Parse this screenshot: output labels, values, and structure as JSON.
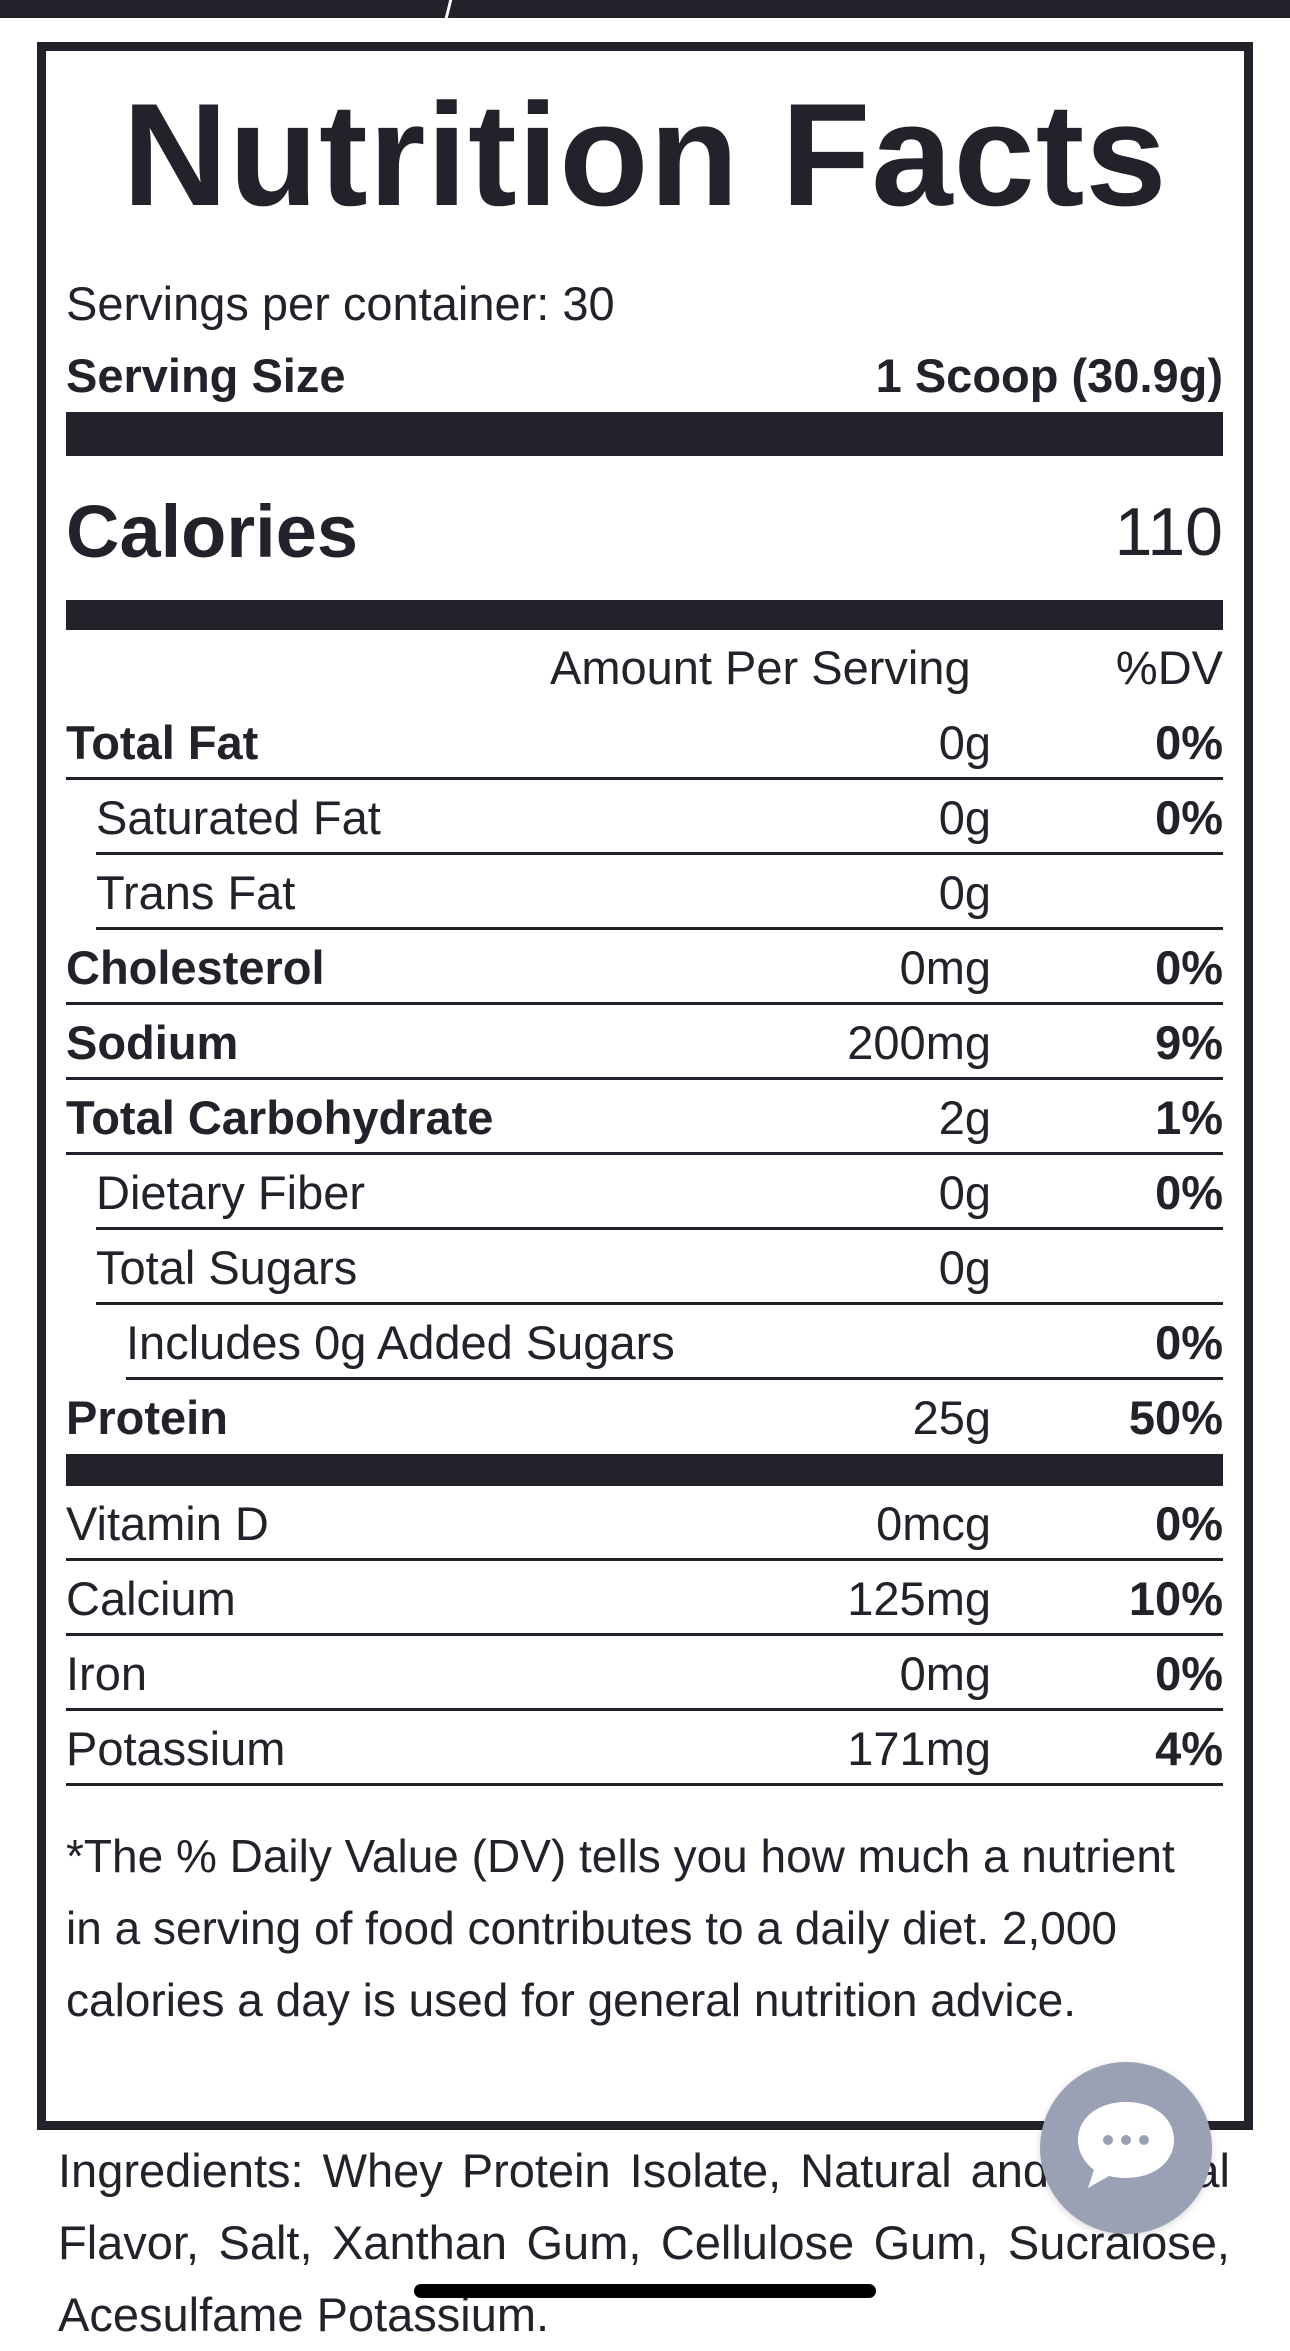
{
  "label": {
    "title": "Nutrition Facts",
    "servings_per_container": "Servings per container: 30",
    "serving_size_label": "Serving Size",
    "serving_size_value": "1 Scoop (30.9g)",
    "calories_label": "Calories",
    "calories_value": "110",
    "header_amount": "Amount Per Serving",
    "header_dv": "%DV",
    "nutrients": [
      {
        "name": "Total Fat",
        "amount": "0g",
        "dv": "0%"
      },
      {
        "name": "Saturated Fat",
        "amount": "0g",
        "dv": "0%"
      },
      {
        "name": "Trans Fat",
        "amount": "0g",
        "dv": ""
      },
      {
        "name": "Cholesterol",
        "amount": "0mg",
        "dv": "0%"
      },
      {
        "name": "Sodium",
        "amount": "200mg",
        "dv": "9%"
      },
      {
        "name": "Total Carbohydrate",
        "amount": "2g",
        "dv": "1%"
      },
      {
        "name": "Dietary Fiber",
        "amount": "0g",
        "dv": "0%"
      },
      {
        "name": "Total Sugars",
        "amount": "0g",
        "dv": ""
      },
      {
        "name": "Includes 0g Added Sugars",
        "amount": "",
        "dv": "0%"
      },
      {
        "name": "Protein",
        "amount": "25g",
        "dv": "50%"
      }
    ],
    "vitamins": [
      {
        "name": "Vitamin D",
        "amount": "0mcg",
        "dv": "0%"
      },
      {
        "name": "Calcium",
        "amount": "125mg",
        "dv": "10%"
      },
      {
        "name": "Iron",
        "amount": "0mg",
        "dv": "0%"
      },
      {
        "name": "Potassium",
        "amount": "171mg",
        "dv": "4%"
      }
    ],
    "footnote": "*The % Daily Value (DV) tells you how much a nutrient in a serving of food contributes to a daily diet. 2,000 calories a day is used for general nutrition advice."
  },
  "ingredients": "Ingredients: Whey Protein Isolate, Natural and Artificial Flavor, Salt, Xanthan Gum, Cellulose Gum, Sucralose, Acesulfame Potassium.",
  "chat_button": {
    "icon": "chat-bubble-icon"
  },
  "colors": {
    "ink": "#22232a",
    "chat_button": "#9aa1b4",
    "background": "#ffffff"
  }
}
